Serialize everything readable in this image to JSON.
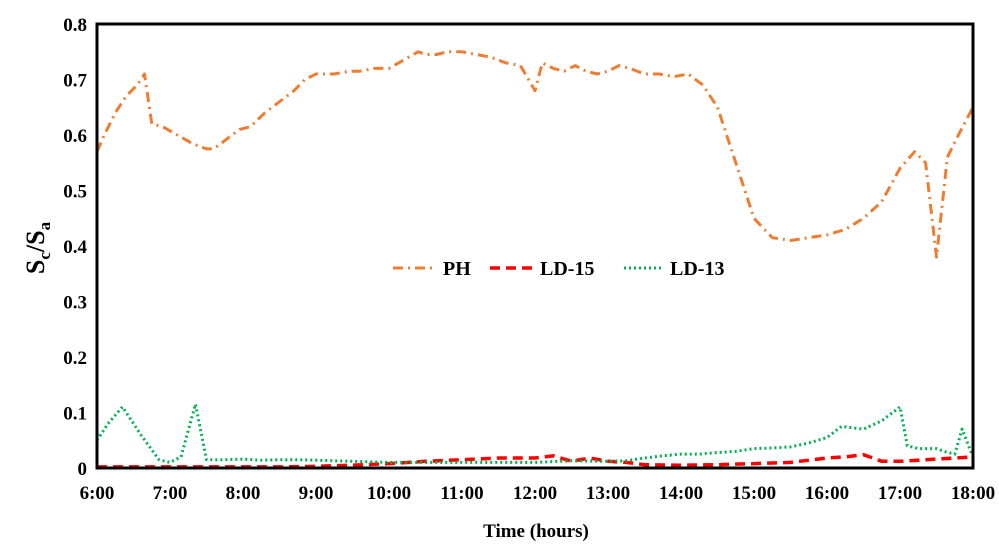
{
  "chart_data": {
    "type": "line",
    "xlabel": "Time (hours)",
    "ylabel": {
      "main": "S",
      "sub1": "c",
      "sep": "/S",
      "sub2": "a"
    },
    "xlim": [
      6,
      18
    ],
    "ylim": [
      0,
      0.8
    ],
    "x_ticks": [
      {
        "value": 6,
        "label": "6:00"
      },
      {
        "value": 7,
        "label": "7:00"
      },
      {
        "value": 8,
        "label": "8:00"
      },
      {
        "value": 9,
        "label": "9:00"
      },
      {
        "value": 10,
        "label": "10:00"
      },
      {
        "value": 11,
        "label": "11:00"
      },
      {
        "value": 12,
        "label": "12:00"
      },
      {
        "value": 13,
        "label": "13:00"
      },
      {
        "value": 14,
        "label": "14:00"
      },
      {
        "value": 15,
        "label": "15:00"
      },
      {
        "value": 16,
        "label": "16:00"
      },
      {
        "value": 17,
        "label": "17:00"
      },
      {
        "value": 18,
        "label": "18:00"
      }
    ],
    "y_ticks": [
      {
        "value": 0,
        "label": "0"
      },
      {
        "value": 0.1,
        "label": "0.1"
      },
      {
        "value": 0.2,
        "label": "0.2"
      },
      {
        "value": 0.3,
        "label": "0.3"
      },
      {
        "value": 0.4,
        "label": "0.4"
      },
      {
        "value": 0.5,
        "label": "0.5"
      },
      {
        "value": 0.6,
        "label": "0.6"
      },
      {
        "value": 0.7,
        "label": "0.7"
      },
      {
        "value": 0.8,
        "label": "0.8"
      }
    ],
    "grid": false,
    "legend_position": "center",
    "series": [
      {
        "name": "PH",
        "color": "#ED7D31",
        "dash": "dash-dot",
        "x": [
          6.0,
          6.1,
          6.25,
          6.4,
          6.55,
          6.65,
          6.75,
          6.9,
          7.1,
          7.3,
          7.5,
          7.6,
          7.75,
          7.95,
          8.1,
          8.3,
          8.5,
          8.7,
          8.85,
          9.0,
          9.25,
          9.45,
          9.6,
          9.8,
          10.0,
          10.2,
          10.4,
          10.5,
          10.65,
          10.8,
          11.0,
          11.2,
          11.4,
          11.6,
          11.8,
          12.0,
          12.1,
          12.25,
          12.4,
          12.55,
          12.7,
          12.85,
          13.0,
          13.15,
          13.3,
          13.5,
          13.7,
          13.9,
          14.1,
          14.3,
          14.5,
          14.75,
          15.0,
          15.25,
          15.5,
          15.75,
          16.0,
          16.25,
          16.5,
          16.75,
          17.0,
          17.2,
          17.35,
          17.5,
          17.65,
          17.8,
          18.0
        ],
        "y": [
          0.57,
          0.6,
          0.64,
          0.67,
          0.69,
          0.71,
          0.62,
          0.615,
          0.6,
          0.585,
          0.575,
          0.575,
          0.59,
          0.61,
          0.615,
          0.64,
          0.66,
          0.68,
          0.7,
          0.71,
          0.71,
          0.715,
          0.715,
          0.72,
          0.72,
          0.735,
          0.75,
          0.745,
          0.745,
          0.75,
          0.75,
          0.745,
          0.74,
          0.73,
          0.725,
          0.68,
          0.73,
          0.72,
          0.715,
          0.725,
          0.715,
          0.71,
          0.715,
          0.725,
          0.72,
          0.71,
          0.71,
          0.705,
          0.71,
          0.69,
          0.65,
          0.55,
          0.45,
          0.415,
          0.41,
          0.415,
          0.42,
          0.43,
          0.45,
          0.48,
          0.54,
          0.57,
          0.55,
          0.38,
          0.56,
          0.6,
          0.65
        ]
      },
      {
        "name": "LD-15",
        "color": "#FF0000",
        "dash": "dash",
        "x": [
          6.0,
          6.5,
          7.0,
          7.5,
          8.0,
          8.5,
          9.0,
          9.5,
          10.0,
          10.5,
          11.0,
          11.5,
          12.0,
          12.25,
          12.5,
          12.75,
          13.0,
          13.25,
          13.5,
          14.0,
          14.5,
          15.0,
          15.5,
          16.0,
          16.25,
          16.5,
          16.75,
          17.0,
          17.5,
          18.0
        ],
        "y": [
          0.002,
          0.002,
          0.002,
          0.002,
          0.002,
          0.002,
          0.003,
          0.005,
          0.008,
          0.012,
          0.015,
          0.018,
          0.018,
          0.022,
          0.012,
          0.018,
          0.012,
          0.01,
          0.006,
          0.005,
          0.006,
          0.008,
          0.01,
          0.018,
          0.02,
          0.024,
          0.012,
          0.012,
          0.016,
          0.02
        ]
      },
      {
        "name": "LD-13",
        "color": "#00B050",
        "dash": "dot",
        "x": [
          6.0,
          6.15,
          6.35,
          6.6,
          6.85,
          7.0,
          7.15,
          7.35,
          7.5,
          7.75,
          8.0,
          8.25,
          8.5,
          8.75,
          9.0,
          9.5,
          10.0,
          10.5,
          11.0,
          11.5,
          12.0,
          12.5,
          13.0,
          13.25,
          13.5,
          13.75,
          14.0,
          14.25,
          14.5,
          14.75,
          15.0,
          15.25,
          15.5,
          15.75,
          16.0,
          16.2,
          16.5,
          16.75,
          17.0,
          17.1,
          17.25,
          17.5,
          17.6,
          17.75,
          17.85,
          18.0
        ],
        "y": [
          0.05,
          0.08,
          0.11,
          0.06,
          0.015,
          0.01,
          0.02,
          0.115,
          0.015,
          0.015,
          0.016,
          0.014,
          0.015,
          0.015,
          0.014,
          0.012,
          0.01,
          0.01,
          0.01,
          0.01,
          0.01,
          0.013,
          0.012,
          0.013,
          0.018,
          0.022,
          0.025,
          0.025,
          0.028,
          0.03,
          0.035,
          0.036,
          0.038,
          0.045,
          0.055,
          0.075,
          0.07,
          0.085,
          0.11,
          0.04,
          0.035,
          0.035,
          0.03,
          0.025,
          0.07,
          0.02
        ]
      }
    ]
  }
}
